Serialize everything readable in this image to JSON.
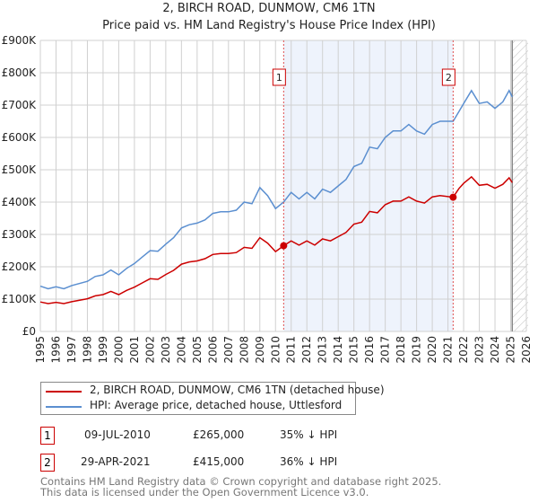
{
  "title": "2, BIRCH ROAD, DUNMOW, CM6 1TN",
  "subtitle": "Price paid vs. HM Land Registry's House Price Index (HPI)",
  "chart_data": {
    "type": "line",
    "xlim": [
      1995,
      2026
    ],
    "ylim": [
      0,
      900000
    ],
    "x_ticks": [
      1995,
      1996,
      1997,
      1998,
      1999,
      2000,
      2001,
      2002,
      2003,
      2004,
      2005,
      2006,
      2007,
      2008,
      2009,
      2010,
      2011,
      2012,
      2013,
      2014,
      2015,
      2016,
      2017,
      2018,
      2019,
      2020,
      2021,
      2022,
      2023,
      2024,
      2025,
      2026
    ],
    "y_ticks": [
      0,
      100000,
      200000,
      300000,
      400000,
      500000,
      600000,
      700000,
      800000,
      900000
    ],
    "y_tick_labels": [
      "£0",
      "£100K",
      "£200K",
      "£300K",
      "£400K",
      "£500K",
      "£600K",
      "£700K",
      "£800K",
      "£900K"
    ],
    "grid": true,
    "shaded_range": [
      2010.52,
      2021.33
    ],
    "hatched_from": 2025.1,
    "series": [
      {
        "name": "2, BIRCH ROAD, DUNMOW, CM6 1TN (detached house)",
        "color": "#cc0000",
        "x": [
          1995,
          1995.5,
          1996,
          1996.5,
          1997,
          1998,
          1998.5,
          1999,
          1999.5,
          2000,
          2000.5,
          2001,
          2001.5,
          2002,
          2002.5,
          2003,
          2003.5,
          2004,
          2004.5,
          2005,
          2005.5,
          2006,
          2006.5,
          2007,
          2007.5,
          2008,
          2008.5,
          2009,
          2009.5,
          2010,
          2010.52,
          2011,
          2011.5,
          2012,
          2012.5,
          2013,
          2013.5,
          2014,
          2014.5,
          2015,
          2015.5,
          2016,
          2016.5,
          2017,
          2017.5,
          2018,
          2018.5,
          2019,
          2019.5,
          2020,
          2020.5,
          2021.33,
          2021.7,
          2022,
          2022.5,
          2023,
          2023.5,
          2024,
          2024.5,
          2024.9,
          2025.1
        ],
        "y": [
          91000,
          86000,
          90000,
          86000,
          92000,
          101000,
          110000,
          114000,
          124000,
          114000,
          127000,
          137000,
          150000,
          163000,
          161000,
          176000,
          189000,
          208000,
          215000,
          218000,
          225000,
          238000,
          241000,
          241000,
          244000,
          260000,
          257000,
          290000,
          273000,
          247000,
          265000,
          280000,
          267000,
          280000,
          267000,
          286000,
          280000,
          293000,
          306000,
          332000,
          338000,
          371000,
          367000,
          392000,
          403000,
          403000,
          416000,
          403000,
          397000,
          416000,
          420000,
          415000,
          442000,
          458000,
          478000,
          452000,
          455000,
          443000,
          455000,
          475000,
          460000
        ]
      },
      {
        "name": "HPI: Average price, detached house, Uttlesford",
        "color": "#5b8fd0",
        "x": [
          1995,
          1995.5,
          1996,
          1996.5,
          1997,
          1998,
          1998.5,
          1999,
          1999.5,
          2000,
          2000.5,
          2001,
          2001.5,
          2002,
          2002.5,
          2003,
          2003.5,
          2004,
          2004.5,
          2005,
          2005.5,
          2006,
          2006.5,
          2007,
          2007.5,
          2008,
          2008.5,
          2009,
          2009.5,
          2010,
          2010.52,
          2011,
          2011.5,
          2012,
          2012.5,
          2013,
          2013.5,
          2014,
          2014.5,
          2015,
          2015.5,
          2016,
          2016.5,
          2017,
          2017.5,
          2018,
          2018.5,
          2019,
          2019.5,
          2020,
          2020.5,
          2021.33,
          2021.7,
          2022,
          2022.5,
          2023,
          2023.5,
          2024,
          2024.5,
          2024.9,
          2025.1
        ],
        "y": [
          140000,
          132000,
          138000,
          132000,
          142000,
          155000,
          170000,
          175000,
          190000,
          175000,
          195000,
          210000,
          230000,
          250000,
          248000,
          270000,
          290000,
          320000,
          330000,
          335000,
          345000,
          365000,
          370000,
          370000,
          375000,
          400000,
          395000,
          445000,
          420000,
          380000,
          400000,
          430000,
          410000,
          430000,
          410000,
          440000,
          430000,
          450000,
          470000,
          510000,
          520000,
          570000,
          565000,
          600000,
          620000,
          620000,
          640000,
          620000,
          610000,
          640000,
          650000,
          650000,
          680000,
          705000,
          745000,
          705000,
          710000,
          690000,
          710000,
          745000,
          725000
        ]
      }
    ],
    "annotations": [
      {
        "label": "1",
        "x": 2010.52,
        "y": 265000
      },
      {
        "label": "2",
        "x": 2021.33,
        "y": 415000
      }
    ]
  },
  "legend": [
    {
      "label": "2, BIRCH ROAD, DUNMOW, CM6 1TN (detached house)",
      "color": "#cc0000"
    },
    {
      "label": "HPI: Average price, detached house, Uttlesford",
      "color": "#5b8fd0"
    }
  ],
  "transactions": [
    {
      "num": "1",
      "date": "09-JUL-2010",
      "price": "£265,000",
      "hpi": "35% ↓ HPI"
    },
    {
      "num": "2",
      "date": "29-APR-2021",
      "price": "£415,000",
      "hpi": "36% ↓ HPI"
    }
  ],
  "footer": [
    "Contains HM Land Registry data © Crown copyright and database right 2025.",
    "This data is licensed under the Open Government Licence v3.0."
  ]
}
